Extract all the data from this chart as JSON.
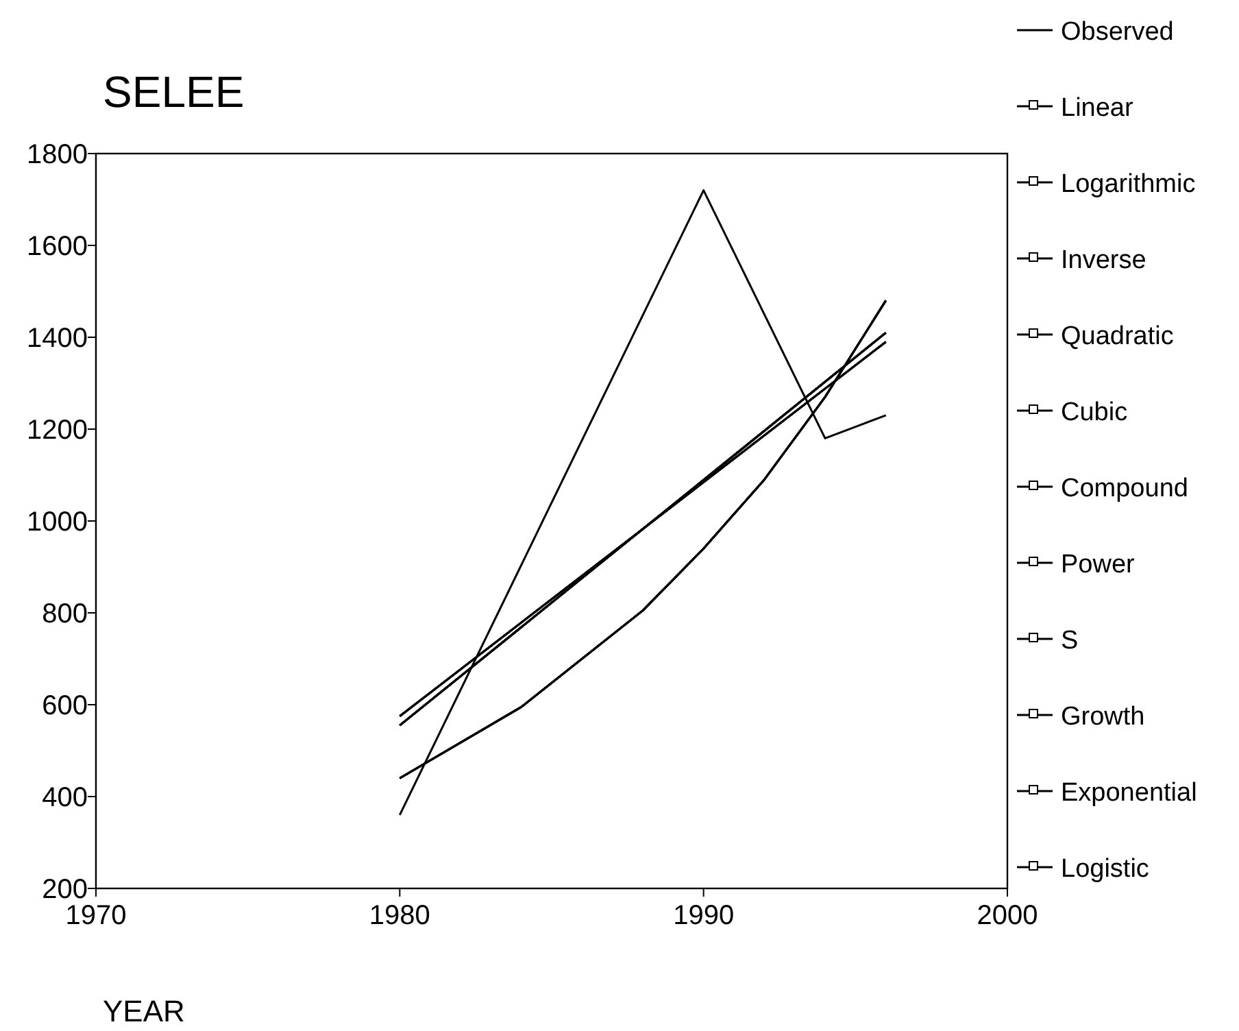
{
  "chart_data": {
    "type": "line",
    "title": "SELEE",
    "xlabel": "YEAR",
    "xlim": [
      1970,
      2000
    ],
    "xticks": [
      1970,
      1980,
      1990,
      2000
    ],
    "ylim": [
      200,
      1800
    ],
    "yticks": [
      200,
      400,
      600,
      800,
      1000,
      1200,
      1400,
      1600,
      1800
    ],
    "grid": false,
    "legend": "right",
    "series": [
      {
        "name": "Observed",
        "color": "#000000",
        "x": [
          1980,
          1990,
          1994,
          1995,
          1996
        ],
        "values": [
          360,
          1720,
          1180,
          1205,
          1230
        ]
      },
      {
        "name": "Linear",
        "color": "#000000",
        "x": [
          1980,
          1996
        ],
        "values": [
          575,
          1390
        ]
      },
      {
        "name": "Logarithmic",
        "color": "#000000",
        "x": [
          1980,
          1996
        ],
        "values": [
          555,
          1410
        ]
      },
      {
        "name": "Inverse",
        "color": "#000000",
        "x": [
          1980,
          1996
        ],
        "values": [
          555,
          1410
        ]
      },
      {
        "name": "Quadratic",
        "color": "#000000",
        "x": [
          1980,
          1996
        ],
        "values": [
          575,
          1390
        ]
      },
      {
        "name": "Cubic",
        "color": "#000000",
        "x": [
          1980,
          1996
        ],
        "values": [
          575,
          1390
        ]
      },
      {
        "name": "Compound",
        "color": "#000000",
        "x": [
          1980,
          1984,
          1988,
          1990,
          1992,
          1994,
          1996
        ],
        "values": [
          440,
          595,
          805,
          940,
          1090,
          1270,
          1480
        ]
      },
      {
        "name": "Power",
        "color": "#000000",
        "x": [
          1980,
          1996
        ],
        "values": [
          555,
          1410
        ]
      },
      {
        "name": "S",
        "color": "#000000",
        "x": [
          1980,
          1996
        ],
        "values": [
          555,
          1410
        ]
      },
      {
        "name": "Growth",
        "color": "#000000",
        "x": [
          1980,
          1984,
          1988,
          1990,
          1992,
          1994,
          1996
        ],
        "values": [
          440,
          595,
          805,
          940,
          1090,
          1270,
          1480
        ]
      },
      {
        "name": "Exponential",
        "color": "#000000",
        "x": [
          1980,
          1984,
          1988,
          1990,
          1992,
          1994,
          1996
        ],
        "values": [
          440,
          595,
          805,
          940,
          1090,
          1270,
          1480
        ]
      },
      {
        "name": "Logistic",
        "color": "#000000",
        "x": [
          1980,
          1984,
          1988,
          1990,
          1992,
          1994,
          1996
        ],
        "values": [
          440,
          595,
          805,
          940,
          1090,
          1270,
          1480
        ]
      }
    ]
  }
}
